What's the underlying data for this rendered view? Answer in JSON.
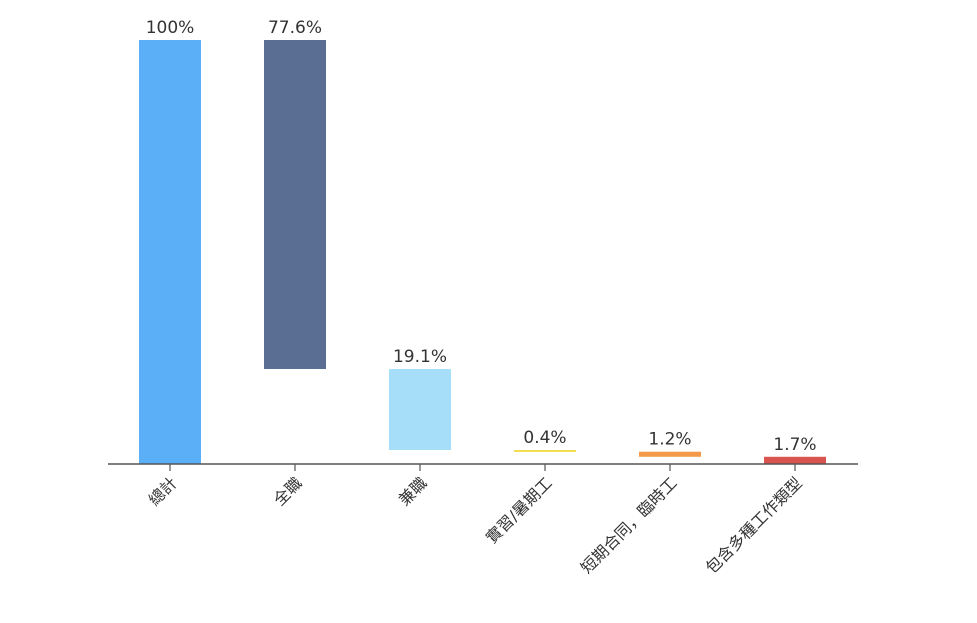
{
  "chart_data": {
    "type": "bar",
    "subtype": "waterfall",
    "categories": [
      "總計",
      "全職",
      "兼職",
      "實習/暑期工",
      "短期合同，臨時工",
      "包含多種工作類型"
    ],
    "values": [
      100,
      77.6,
      19.1,
      0.4,
      1.2,
      1.7
    ],
    "value_labels": [
      "100%",
      "77.6%",
      "19.1%",
      "0.4%",
      "1.2%",
      "1.7%"
    ],
    "colors": [
      "#5aaff6",
      "#5a6e94",
      "#a6def9",
      "#f2dd52",
      "#f59a4a",
      "#d9534f"
    ],
    "ylim": [
      0,
      100
    ],
    "unit": "%",
    "grid": false,
    "legend": "none",
    "title": "",
    "xlabel": "",
    "ylabel": ""
  }
}
